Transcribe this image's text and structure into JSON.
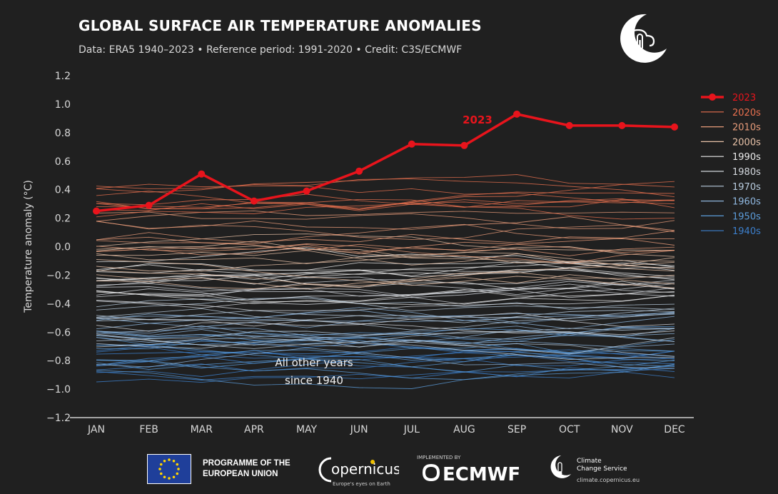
{
  "header": {
    "title": "GLOBAL SURFACE AIR TEMPERATURE ANOMALIES",
    "subtitle": "Data: ERA5 1940–2023 • Reference period: 1991-2020 • Credit: C3S/ECMWF"
  },
  "chart_data": {
    "type": "line",
    "categories": [
      "JAN",
      "FEB",
      "MAR",
      "APR",
      "MAY",
      "JUN",
      "JUL",
      "AUG",
      "SEP",
      "OCT",
      "NOV",
      "DEC"
    ],
    "ylabel": "Temperature anomaly (°C)",
    "ylim": [
      -1.2,
      1.2
    ],
    "yticks": [
      "1.2",
      "1.0",
      "0.8",
      "0.6",
      "0.4",
      "0.2",
      "0.0",
      "−0.2",
      "−0.4",
      "−0.6",
      "−0.8",
      "−1.0",
      "−1.2"
    ],
    "grid": false,
    "legend_position": "right",
    "highlight": {
      "name": "2023",
      "label": "2023",
      "color": "#e8141c",
      "values": [
        0.25,
        0.29,
        0.51,
        0.32,
        0.39,
        0.53,
        0.72,
        0.71,
        0.93,
        0.85,
        0.85,
        0.84
      ]
    },
    "annotation": {
      "line1": "All other years",
      "line2": "since 1940"
    },
    "legend": [
      {
        "name": "2023",
        "color": "#e8141c"
      },
      {
        "name": "2020s",
        "color": "#e8704f"
      },
      {
        "name": "2010s",
        "color": "#e79b79"
      },
      {
        "name": "2000s",
        "color": "#e8c2a8"
      },
      {
        "name": "1990s",
        "color": "#ececec"
      },
      {
        "name": "1980s",
        "color": "#d4d8de"
      },
      {
        "name": "1970s",
        "color": "#b9cde0"
      },
      {
        "name": "1960s",
        "color": "#8fb7df"
      },
      {
        "name": "1950s",
        "color": "#5b9bd8"
      },
      {
        "name": "1940s",
        "color": "#3c7fcc"
      }
    ],
    "decades": [
      {
        "name": "1940s",
        "color": "#3c7fcc",
        "base": -0.78
      },
      {
        "name": "1950s",
        "color": "#5b9bd8",
        "base": -0.74
      },
      {
        "name": "1960s",
        "color": "#8fb7df",
        "base": -0.66
      },
      {
        "name": "1970s",
        "color": "#b9cde0",
        "base": -0.58
      },
      {
        "name": "1980s",
        "color": "#d4d8de",
        "base": -0.4
      },
      {
        "name": "1990s",
        "color": "#ececec",
        "base": -0.25
      },
      {
        "name": "2000s",
        "color": "#e8c2a8",
        "base": -0.1
      },
      {
        "name": "2010s",
        "color": "#e79b79",
        "base": 0.1
      },
      {
        "name": "2020s",
        "color": "#e8704f",
        "base": 0.32
      }
    ]
  },
  "footer": {
    "eu_line1": "PROGRAMME OF THE",
    "eu_line2": "EUROPEAN UNION",
    "copernicus": "opernicus",
    "copernicus_tag": "Europe's eyes on Earth",
    "implemented_by": "IMPLEMENTED BY",
    "ecmwf": "ECMWF",
    "c3s_line1": "Climate",
    "c3s_line2": "Change Service",
    "c3s_url": "climate.copernicus.eu"
  }
}
